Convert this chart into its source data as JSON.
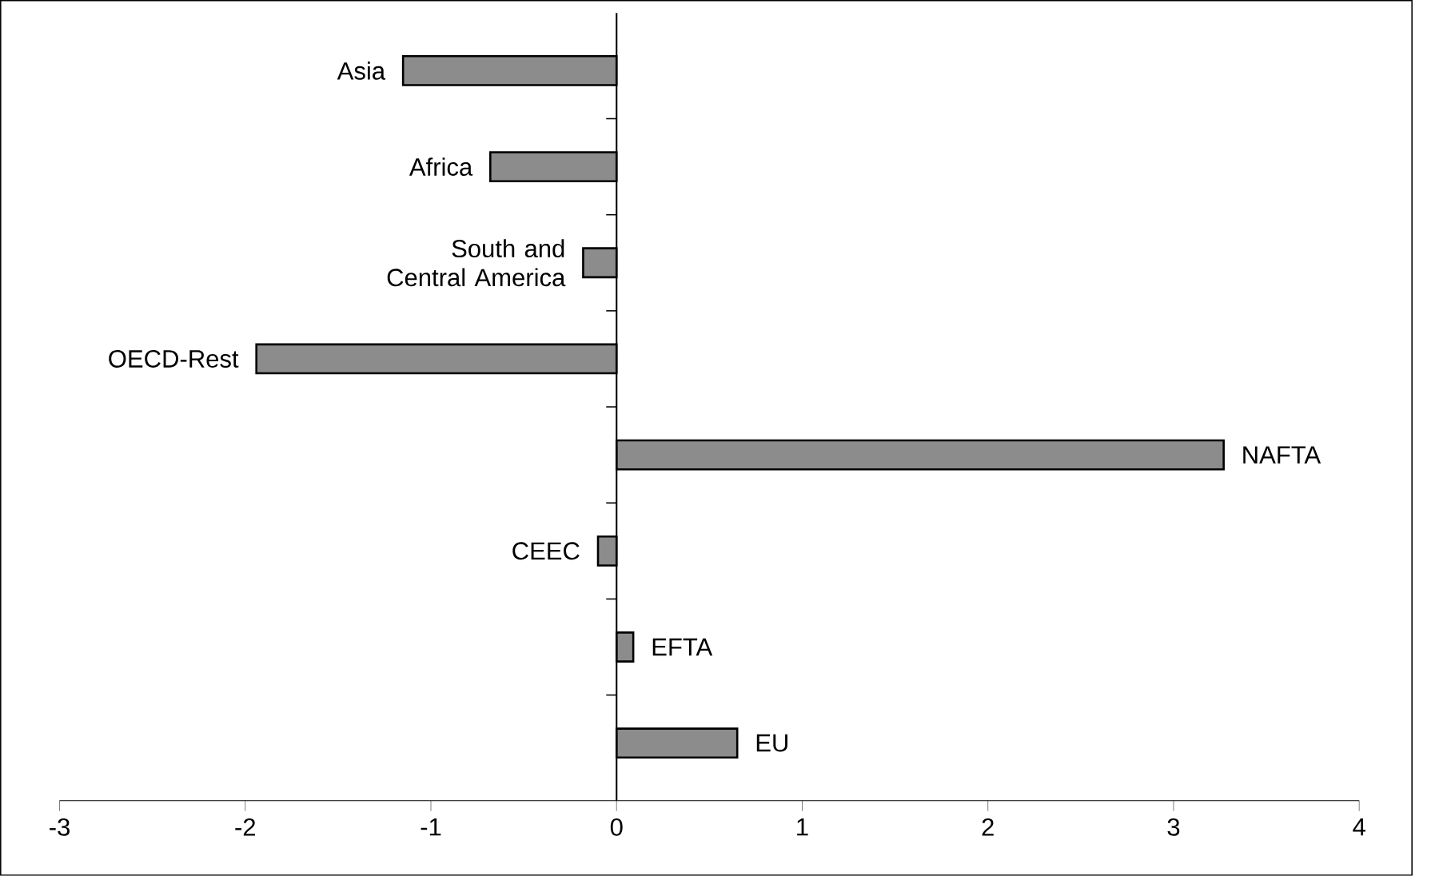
{
  "chart_data": {
    "type": "bar",
    "orientation": "horizontal",
    "categories": [
      "Asia",
      "Africa",
      "South and Central America",
      "OECD-Rest",
      "NAFTA",
      "CEEC",
      "EFTA",
      "EU"
    ],
    "values": [
      -1.15,
      -0.68,
      -0.18,
      -1.94,
      3.27,
      -0.1,
      0.09,
      0.65
    ],
    "color": "#8c8c8c",
    "xlim": [
      -3,
      4
    ],
    "xticks": [
      -3,
      -2,
      -1,
      0,
      1,
      2,
      3,
      4
    ],
    "tick_labels": "x"
  }
}
